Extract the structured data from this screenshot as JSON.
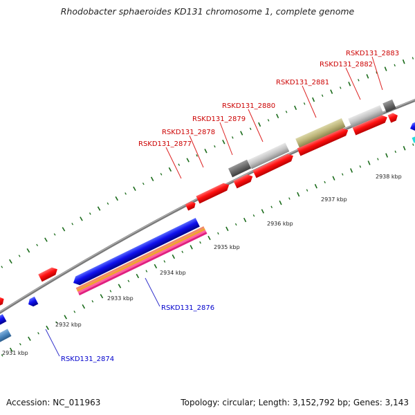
{
  "title": "Rhodobacter sphaeroides KD131 chromosome 1, complete genome",
  "footer": {
    "accession": "Accession: NC_011963",
    "summary": "Topology: circular; Length: 3,152,792 bp; Genes: 3,143"
  },
  "scale_labels": [
    "2931 kbp",
    "2932 kbp",
    "2933 kbp",
    "2934 kbp",
    "2935 kbp",
    "2936 kbp",
    "2937 kbp",
    "2938 kbp"
  ],
  "gene_labels": {
    "forward": [
      "RSKD131_2877",
      "RSKD131_2878",
      "RSKD131_2879",
      "RSKD131_2880",
      "RSKD131_2881",
      "RSKD131_2882",
      "RSKD131_2883"
    ],
    "reverse": [
      "RSKD131_2874",
      "RSKD131_2876"
    ]
  },
  "colors": {
    "forward_label": "#cc0000",
    "reverse_label": "#0000cc",
    "backbone": "#7a7a7a",
    "tick": "#1a6b1a"
  }
}
